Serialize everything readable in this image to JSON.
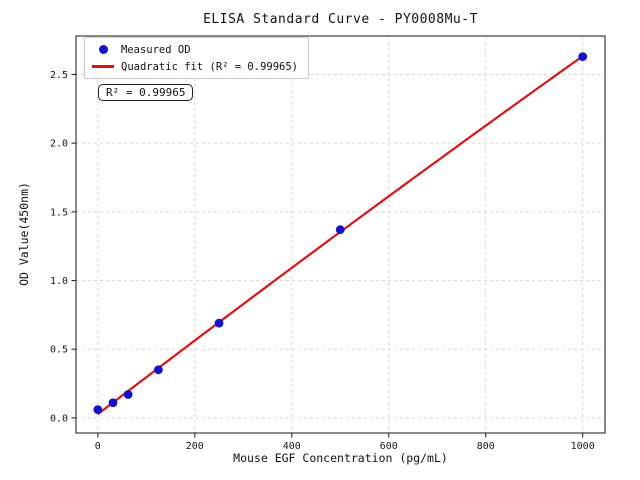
{
  "chart_data": {
    "type": "scatter",
    "title": "ELISA Standard Curve - PY0008Mu-T",
    "xlabel": "Mouse EGF Concentration (pg/mL)",
    "ylabel": "OD Value(450nm)",
    "xlim": [
      -45,
      1046
    ],
    "ylim": [
      -0.11,
      2.78
    ],
    "xticks": [
      0,
      200,
      400,
      600,
      800,
      1000
    ],
    "yticks": [
      0.0,
      0.5,
      1.0,
      1.5,
      2.0,
      2.5
    ],
    "grid": true,
    "grid_style": "dashed",
    "legend_position": "upper left",
    "series": [
      {
        "name": "Measured OD",
        "type": "scatter",
        "x": [
          0,
          31.25,
          62.5,
          125,
          250,
          500,
          1000
        ],
        "y": [
          0.06,
          0.11,
          0.17,
          0.35,
          0.69,
          1.37,
          2.63
        ],
        "color": "#1313cf"
      },
      {
        "name": "Quadratic fit (R² = 0.99965)",
        "type": "line",
        "fit": "quadratic",
        "fit_of": "Measured OD",
        "r_squared": 0.99965,
        "color": "#e01015"
      }
    ]
  },
  "legend": {
    "measured_label": "Measured OD",
    "fit_label": "Quadratic fit (R² = 0.99965)"
  },
  "annotation": {
    "r_squared_text": "R² = 0.99965"
  }
}
